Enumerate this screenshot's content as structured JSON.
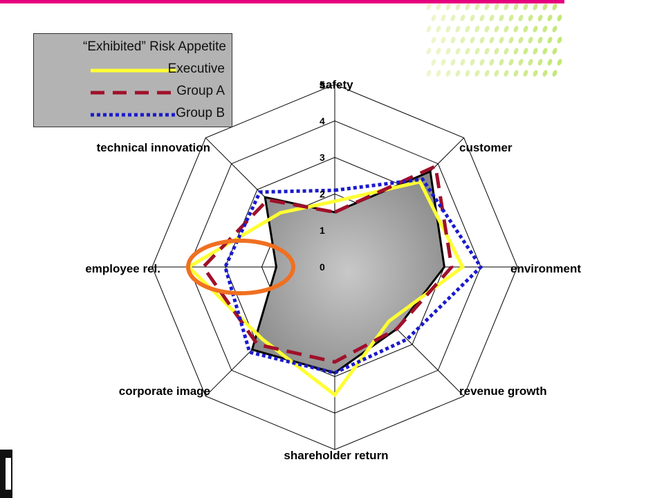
{
  "colors": {
    "accent_bar": "#e6007e",
    "executive": "#ffff33",
    "group_a": "#a0102a",
    "group_b": "#1a1acc",
    "highlight": "#f07020",
    "fill": "#9a9a9a"
  },
  "legend": {
    "title": "“Exhibited” Risk Appetite",
    "items": [
      {
        "label": "Executive",
        "style": "solid",
        "color": "#ffff33"
      },
      {
        "label": "Group A",
        "style": "dashed",
        "color": "#a0102a"
      },
      {
        "label": "Group B",
        "style": "dotted",
        "color": "#1a1acc"
      }
    ]
  },
  "chart_data": {
    "type": "radar",
    "title": "",
    "axes": [
      "safety",
      "customer",
      "environment",
      "revenue growth",
      "shareholder return",
      "corporate image",
      "employee rel.",
      "technical innovation"
    ],
    "ticks": [
      "0",
      "1",
      "2",
      "3",
      "4",
      "5"
    ],
    "range": [
      0,
      5
    ],
    "series": [
      {
        "name": "",
        "style": "filled",
        "color": "#9a9a9a",
        "values": [
          1.5,
          3.7,
          3.0,
          2.4,
          2.9,
          3.2,
          1.6,
          2.7
        ]
      },
      {
        "name": "Executive",
        "style": "solid",
        "color": "#ffff33",
        "values": [
          1.8,
          3.3,
          3.5,
          2.1,
          3.5,
          2.8,
          4.0,
          2.1
        ]
      },
      {
        "name": "Group A",
        "style": "dashed",
        "color": "#a0102a",
        "values": [
          1.5,
          3.9,
          3.2,
          2.4,
          2.6,
          3.0,
          3.6,
          2.6
        ]
      },
      {
        "name": "Group B",
        "style": "dotted",
        "color": "#1a1acc",
        "values": [
          2.1,
          3.4,
          4.0,
          2.8,
          2.9,
          3.3,
          3.0,
          2.9
        ]
      }
    ],
    "annotation": {
      "type": "circle",
      "axis": "employee rel.",
      "color": "#f07020"
    },
    "legend_position": "top-left",
    "grid": true
  }
}
